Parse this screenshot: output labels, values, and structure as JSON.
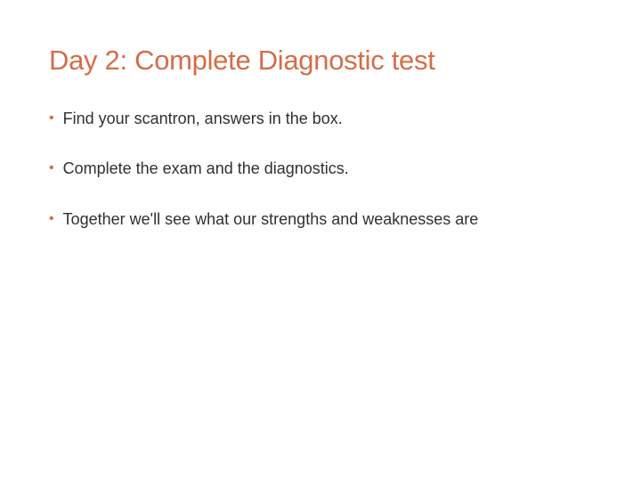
{
  "slide": {
    "title": "Day 2: Complete Diagnostic test",
    "title_color": "#d36e49",
    "title_fontsize": 31,
    "body_color": "#303030",
    "body_fontsize": 18,
    "bullet_color": "#d36e49",
    "background_color": "#ffffff",
    "bullets": [
      "Find your scantron, answers in the box.",
      "Complete the exam and the diagnostics.",
      "Together we'll see what our strengths and weaknesses are"
    ]
  }
}
